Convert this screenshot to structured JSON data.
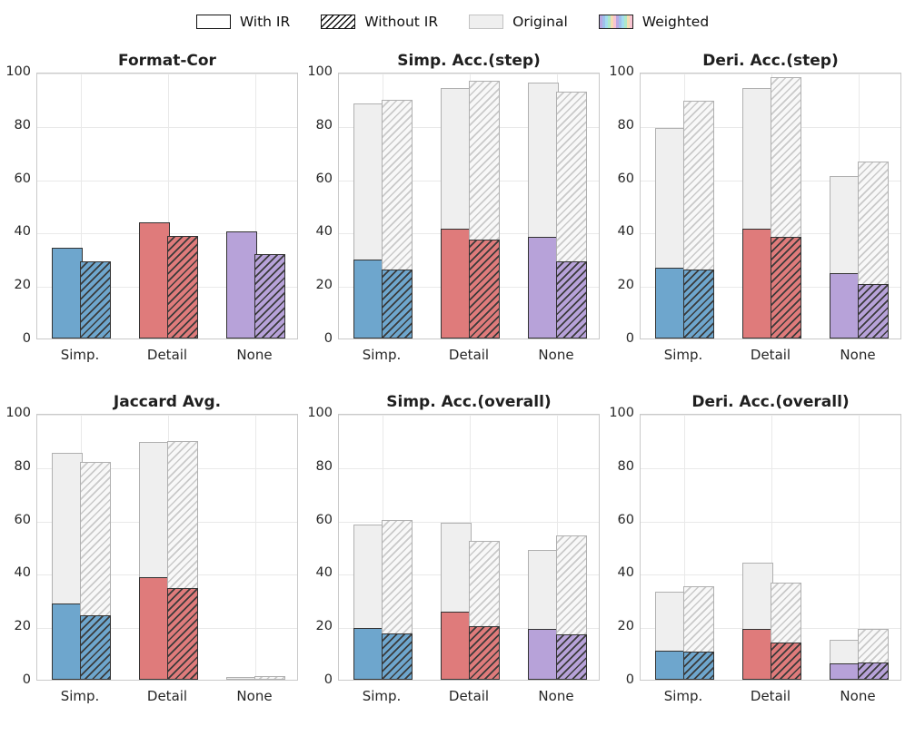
{
  "legend": {
    "items": [
      {
        "label": "With IR",
        "swatch": "with-ir"
      },
      {
        "label": "Without IR",
        "swatch": "without-ir"
      },
      {
        "label": "Original",
        "swatch": "original"
      },
      {
        "label": "Weighted",
        "swatch": "weighted"
      }
    ]
  },
  "style": {
    "category_colors": [
      "#6ea6cd",
      "#df7b7b",
      "#b7a2d9"
    ],
    "original_fill": "#efefef",
    "original_edge": "#b0b0b0",
    "weighted_edge": "#333333",
    "grid_color": "#e9e9e9",
    "spine_color": "#c9c9c9",
    "accent_text": "#1c1c1c"
  },
  "chart_data": [
    {
      "type": "bar",
      "title": "Format-Cor",
      "categories": [
        "Simp.",
        "Detail",
        "None"
      ],
      "ylim": [
        0,
        100
      ],
      "yticks": [
        0,
        20,
        40,
        60,
        80,
        100
      ],
      "grid": true,
      "series": [
        {
          "name": "Original (With IR)",
          "group": "original",
          "variant": "with-ir",
          "values": null
        },
        {
          "name": "Original (Without IR)",
          "group": "original",
          "variant": "without-ir",
          "values": null
        },
        {
          "name": "Weighted (With IR)",
          "group": "weighted",
          "variant": "with-ir",
          "values": [
            34,
            43.5,
            40
          ]
        },
        {
          "name": "Weighted (Without IR)",
          "group": "weighted",
          "variant": "without-ir",
          "values": [
            29,
            38.5,
            31.5
          ]
        }
      ]
    },
    {
      "type": "bar",
      "title": "Simp. Acc.(step)",
      "categories": [
        "Simp.",
        "Detail",
        "None"
      ],
      "ylim": [
        0,
        100
      ],
      "yticks": [
        0,
        20,
        40,
        60,
        80,
        100
      ],
      "grid": true,
      "series": [
        {
          "name": "Original (With IR)",
          "group": "original",
          "variant": "with-ir",
          "values": [
            88,
            94,
            96
          ]
        },
        {
          "name": "Original (Without IR)",
          "group": "original",
          "variant": "without-ir",
          "values": [
            89.5,
            96.5,
            92.5
          ]
        },
        {
          "name": "Weighted (With IR)",
          "group": "weighted",
          "variant": "with-ir",
          "values": [
            29.5,
            41,
            38
          ]
        },
        {
          "name": "Weighted (Without IR)",
          "group": "weighted",
          "variant": "without-ir",
          "values": [
            26,
            37,
            29
          ]
        }
      ]
    },
    {
      "type": "bar",
      "title": "Deri. Acc.(step)",
      "categories": [
        "Simp.",
        "Detail",
        "None"
      ],
      "ylim": [
        0,
        100
      ],
      "yticks": [
        0,
        20,
        40,
        60,
        80,
        100
      ],
      "grid": true,
      "series": [
        {
          "name": "Original (With IR)",
          "group": "original",
          "variant": "with-ir",
          "values": [
            79,
            94,
            61
          ]
        },
        {
          "name": "Original (Without IR)",
          "group": "original",
          "variant": "without-ir",
          "values": [
            89,
            98,
            66.5
          ]
        },
        {
          "name": "Weighted (With IR)",
          "group": "weighted",
          "variant": "with-ir",
          "values": [
            26.5,
            41,
            24.5
          ]
        },
        {
          "name": "Weighted (Without IR)",
          "group": "weighted",
          "variant": "without-ir",
          "values": [
            26,
            38,
            20.5
          ]
        }
      ]
    },
    {
      "type": "bar",
      "title": "Jaccard Avg.",
      "categories": [
        "Simp.",
        "Detail",
        "None"
      ],
      "ylim": [
        0,
        100
      ],
      "yticks": [
        0,
        20,
        40,
        60,
        80,
        100
      ],
      "grid": true,
      "series": [
        {
          "name": "Original (With IR)",
          "group": "original",
          "variant": "with-ir",
          "values": [
            85,
            89,
            1
          ]
        },
        {
          "name": "Original (Without IR)",
          "group": "original",
          "variant": "without-ir",
          "values": [
            81.5,
            89.5,
            1.5
          ]
        },
        {
          "name": "Weighted (With IR)",
          "group": "weighted",
          "variant": "with-ir",
          "values": [
            28.5,
            38.5,
            0
          ]
        },
        {
          "name": "Weighted (Without IR)",
          "group": "weighted",
          "variant": "without-ir",
          "values": [
            24,
            34.5,
            0
          ]
        }
      ]
    },
    {
      "type": "bar",
      "title": "Simp. Acc.(overall)",
      "categories": [
        "Simp.",
        "Detail",
        "None"
      ],
      "ylim": [
        0,
        100
      ],
      "yticks": [
        0,
        20,
        40,
        60,
        80,
        100
      ],
      "grid": true,
      "series": [
        {
          "name": "Original (With IR)",
          "group": "original",
          "variant": "with-ir",
          "values": [
            58,
            59,
            48.5
          ]
        },
        {
          "name": "Original (Without IR)",
          "group": "original",
          "variant": "without-ir",
          "values": [
            60,
            52,
            54
          ]
        },
        {
          "name": "Weighted (With IR)",
          "group": "weighted",
          "variant": "with-ir",
          "values": [
            19.5,
            25.5,
            19
          ]
        },
        {
          "name": "Weighted (Without IR)",
          "group": "weighted",
          "variant": "without-ir",
          "values": [
            17.5,
            20,
            17
          ]
        }
      ]
    },
    {
      "type": "bar",
      "title": "Deri. Acc.(overall)",
      "categories": [
        "Simp.",
        "Detail",
        "None"
      ],
      "ylim": [
        0,
        100
      ],
      "yticks": [
        0,
        20,
        40,
        60,
        80,
        100
      ],
      "grid": true,
      "series": [
        {
          "name": "Original (With IR)",
          "group": "original",
          "variant": "with-ir",
          "values": [
            33,
            44,
            15
          ]
        },
        {
          "name": "Original (Without IR)",
          "group": "original",
          "variant": "without-ir",
          "values": [
            35,
            36.5,
            19
          ]
        },
        {
          "name": "Weighted (With IR)",
          "group": "weighted",
          "variant": "with-ir",
          "values": [
            11,
            19,
            6
          ]
        },
        {
          "name": "Weighted (Without IR)",
          "group": "weighted",
          "variant": "without-ir",
          "values": [
            10.5,
            14,
            6.5
          ]
        }
      ]
    }
  ]
}
